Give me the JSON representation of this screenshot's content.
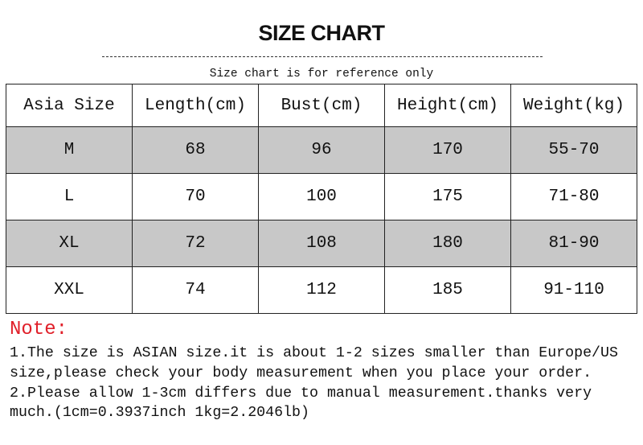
{
  "title": "SIZE CHART",
  "subtitle": "Size chart is for reference only",
  "table": {
    "headers": [
      "Asia Size",
      "Length(cm)",
      "Bust(cm)",
      "Height(cm)",
      "Weight(kg)"
    ],
    "rows": [
      [
        "M",
        "68",
        "96",
        "170",
        "55-70"
      ],
      [
        "L",
        "70",
        "100",
        "175",
        "71-80"
      ],
      [
        "XL",
        "72",
        "108",
        "180",
        "81-90"
      ],
      [
        "XXL",
        "74",
        "112",
        "185",
        "91-110"
      ]
    ],
    "shaded_row_color": "#c8c8c8"
  },
  "note": {
    "label": "Note:",
    "label_color": "#e0202a",
    "lines": [
      "1.The size is ASIAN size.it is about 1-2 sizes smaller than Europe/US",
      "size,please check your body measurement when you place your order.",
      "2.Please allow 1-3cm differs due to manual measurement.thanks very",
      "much.(1cm=0.3937inch 1kg=2.2046lb)"
    ]
  }
}
